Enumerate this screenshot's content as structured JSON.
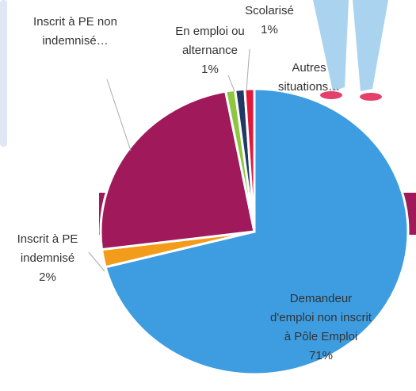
{
  "chart_data": {
    "type": "pie",
    "categories": [
      "Demandeur d'emploi non inscrit à Pôle Emploi",
      "Inscrit à PE indemnisé",
      "Inscrit à PE non indemnisé…",
      "En emploi ou alternance",
      "Scolarisé",
      "Autres situations…"
    ],
    "values": [
      71,
      2,
      24,
      1,
      1,
      1
    ],
    "value_labels": [
      "71%",
      "2%",
      null,
      "1%",
      "1%",
      null
    ],
    "colors": [
      "#3d9de0",
      "#f39c1c",
      "#a0195a",
      "#8dc63f",
      "#1f3864",
      "#e3173e"
    ]
  }
}
